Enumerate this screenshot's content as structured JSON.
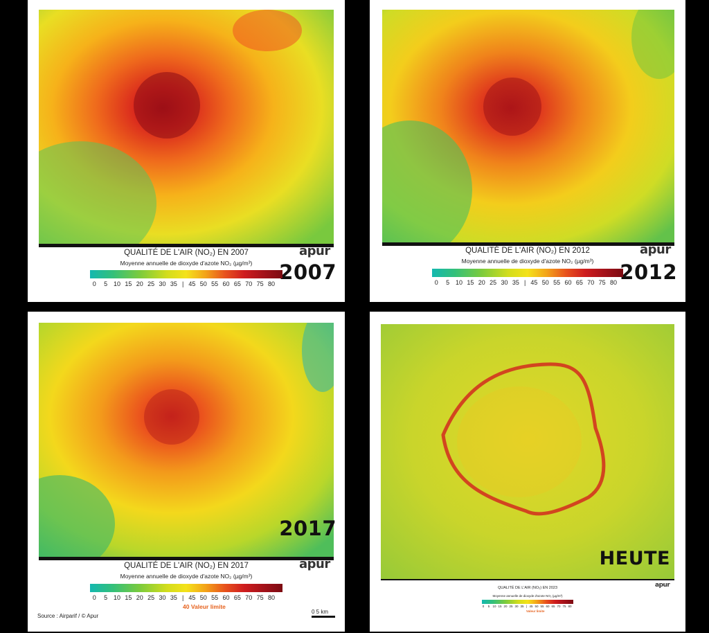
{
  "panels": [
    {
      "id": "2007",
      "year_label": "2007",
      "title": "QUALITÉ DE L'AIR (NO₂) EN 2007",
      "subtitle": "Moyenne annuelle de dioxyde d'azote NO₂ (µg/m³)",
      "logo": "apur"
    },
    {
      "id": "2012",
      "year_label": "2012",
      "title": "QUALITÉ DE L'AIR (NO₂) EN 2012",
      "subtitle": "Moyenne annuelle de dioxyde d'azote NO₂ (µg/m³)",
      "logo": "apur"
    },
    {
      "id": "2017",
      "year_label": "2017",
      "title": "QUALITÉ DE L'AIR (NO₂) EN 2017",
      "subtitle": "Moyenne annuelle de dioxyde d'azote NO₂ (µg/m³)",
      "logo": "apur",
      "limit_label": "40 Valeur limite",
      "source": "Source : Airparif / © Apur",
      "scale_label": "0 5 km"
    },
    {
      "id": "now",
      "year_label": "HEUTE",
      "title": "QUALITÉ DE L'AIR (NO₂) EN 2023",
      "subtitle": "Moyenne annuelle de dioxyde d'azote NO₂ (µg/m³)",
      "logo": "apur",
      "limit_label": "Valeur limite"
    }
  ],
  "legend_ticks": [
    "0",
    "5",
    "10",
    "15",
    "20",
    "25",
    "30",
    "35",
    "45",
    "50",
    "55",
    "60",
    "65",
    "70",
    "75",
    "80"
  ],
  "colors": {
    "low": "#14b8b0",
    "mid": "#f4e21a",
    "high": "#cf1d1e",
    "max": "#7c0b12",
    "limit": "#e6621e"
  }
}
